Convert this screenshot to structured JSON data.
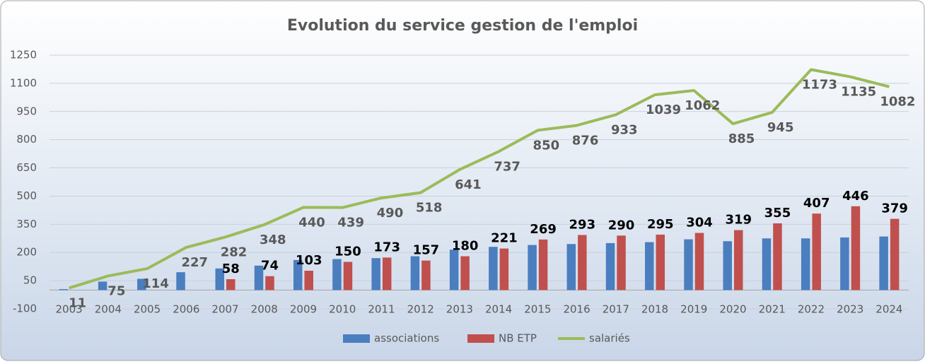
{
  "chart_data": {
    "type": "bar-line",
    "title": "Evolution du service gestion de l'emploi",
    "categories": [
      "2003",
      "2004",
      "2005",
      "2006",
      "2007",
      "2008",
      "2009",
      "2010",
      "2011",
      "2012",
      "2013",
      "2014",
      "2015",
      "2016",
      "2017",
      "2018",
      "2019",
      "2020",
      "2021",
      "2022",
      "2023",
      "2024"
    ],
    "series": [
      {
        "name": "associations",
        "type": "bar",
        "color": "#4a7ebf",
        "data_labels": false,
        "values": [
          5,
          45,
          60,
          95,
          115,
          130,
          160,
          165,
          170,
          180,
          215,
          230,
          240,
          245,
          250,
          255,
          270,
          260,
          275,
          275,
          280,
          285
        ]
      },
      {
        "name": "NB ETP",
        "type": "bar",
        "color": "#c0504d",
        "data_labels": true,
        "label_color": "#000000",
        "values": [
          null,
          null,
          null,
          null,
          58,
          74,
          103,
          150,
          173,
          157,
          180,
          221,
          269,
          293,
          290,
          295,
          304,
          319,
          355,
          407,
          446,
          379
        ]
      },
      {
        "name": "salariés",
        "type": "line",
        "color": "#9bbb59",
        "data_labels": true,
        "label_color": "#595959",
        "values": [
          11,
          75,
          114,
          227,
          282,
          348,
          440,
          439,
          490,
          518,
          641,
          737,
          850,
          876,
          933,
          1039,
          1062,
          885,
          945,
          1173,
          1135,
          1082
        ]
      }
    ],
    "ylim": [
      -100,
      1250
    ],
    "yticks": [
      -100,
      50,
      200,
      350,
      500,
      650,
      800,
      950,
      1100,
      1250
    ],
    "grid": true,
    "legend": "bottom"
  }
}
